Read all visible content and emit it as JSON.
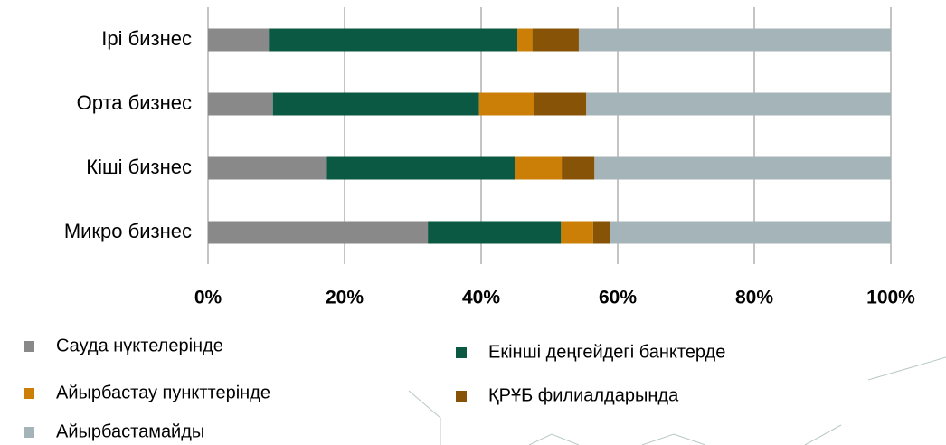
{
  "chart_data": {
    "type": "stacked-bar-horizontal",
    "categories": [
      "Ірі бизнес",
      "Орта бизнес",
      "Кіші бизнес",
      "Микро бизнес"
    ],
    "series": [
      {
        "name": "Сауда нүктелерінде",
        "color": "#898989",
        "values": [
          8.9,
          9.5,
          17.4,
          32.2
        ]
      },
      {
        "name": "Екінші деңгейдегі банктерде",
        "color": "#0b5843",
        "values": [
          36.4,
          30.2,
          27.5,
          19.5
        ]
      },
      {
        "name": "Айырбастау пункттерінде",
        "color": "#cc7f06",
        "values": [
          2.2,
          8.0,
          6.9,
          4.7
        ]
      },
      {
        "name": "ҚРҰБ филиалдарында",
        "color": "#875407",
        "values": [
          6.8,
          7.7,
          4.8,
          2.5
        ]
      },
      {
        "name": "Айырбастамайды",
        "color": "#a5b4b8",
        "values": [
          45.7,
          44.6,
          43.4,
          41.1
        ]
      }
    ],
    "xlim": [
      0,
      100
    ],
    "xticks": [
      {
        "value": 0,
        "label": "0%"
      },
      {
        "value": 20,
        "label": "20%"
      },
      {
        "value": 40,
        "label": "40%"
      },
      {
        "value": 60,
        "label": "60%"
      },
      {
        "value": 80,
        "label": "80%"
      },
      {
        "value": 100,
        "label": "100%"
      }
    ],
    "grid": true
  }
}
